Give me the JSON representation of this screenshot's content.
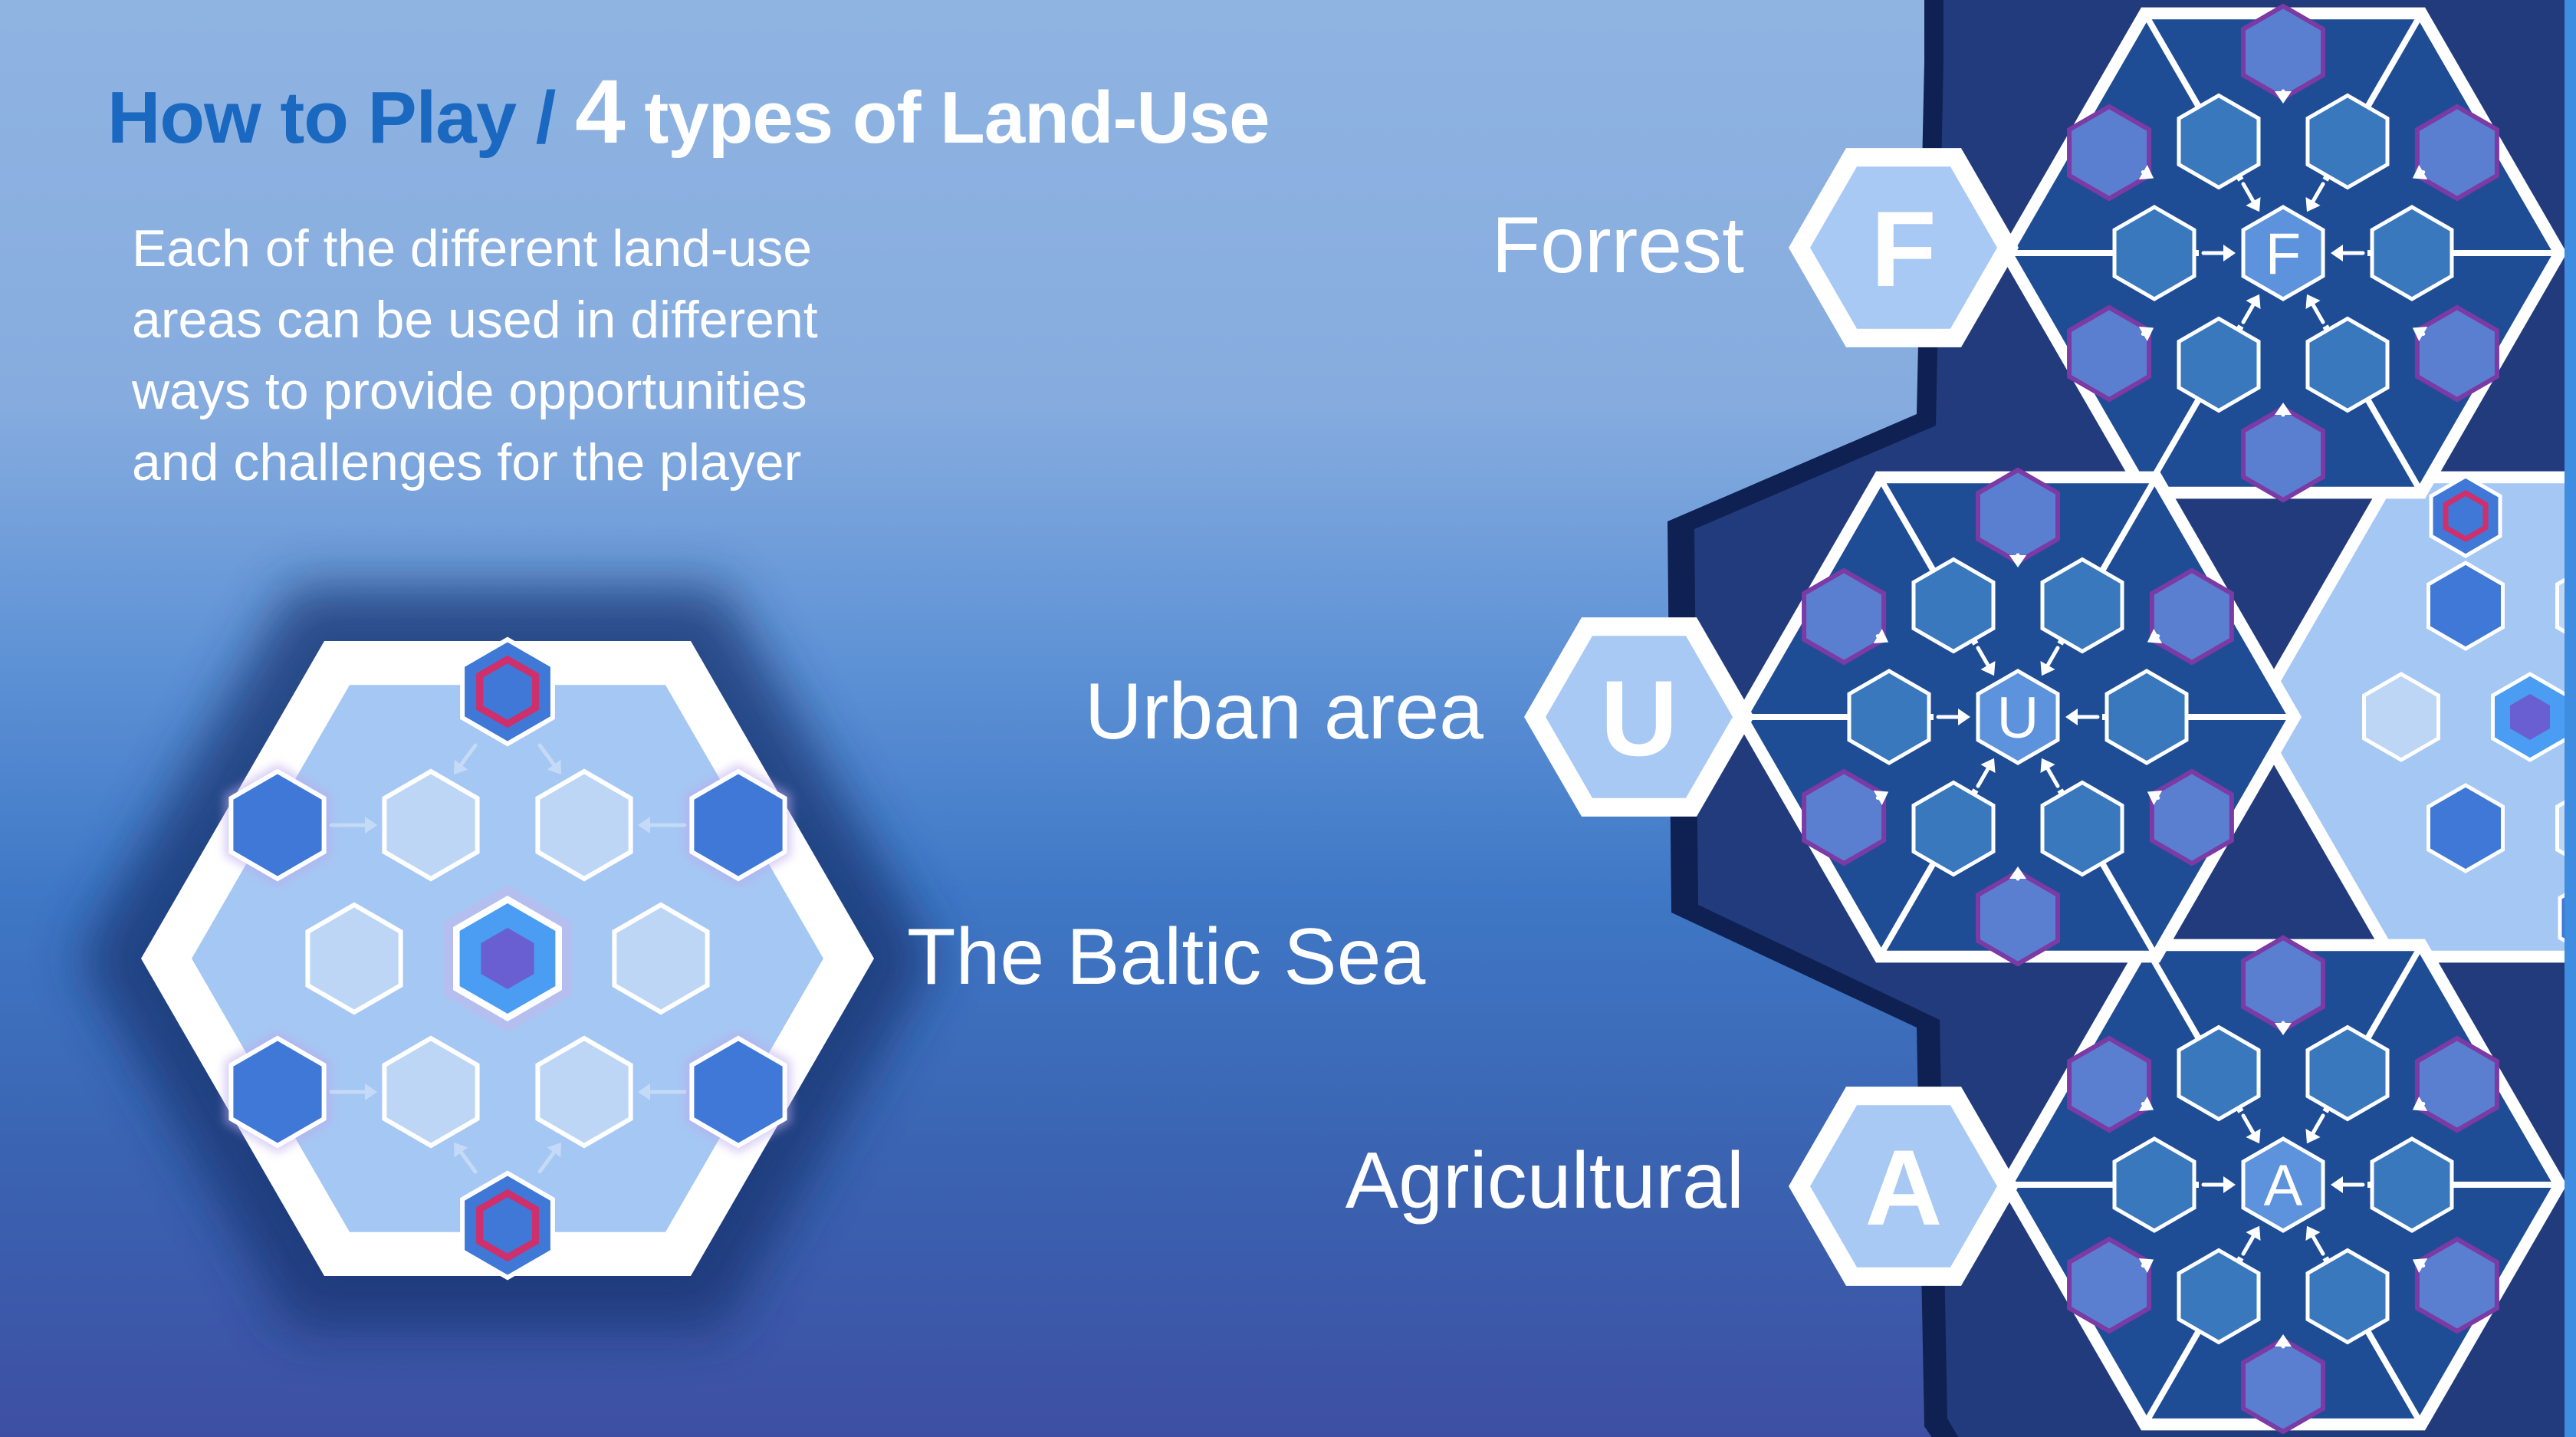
{
  "title": {
    "part_how": "How to Play",
    "part_sep": " / ",
    "part_num": "4",
    "part_rest": " types of Land-Use"
  },
  "intro": {
    "line1": "Each of the different land-use",
    "line2": "areas can be used in different",
    "line3": "ways to provide opportunities",
    "line4": "and challenges for the player"
  },
  "land_uses": {
    "forrest": {
      "label": "Forrest",
      "letter": "F"
    },
    "urban": {
      "label": "Urban area",
      "letter": "U"
    },
    "sea": {
      "label": "The Baltic Sea"
    },
    "agricultural": {
      "label": "Agricultural",
      "letter": "A"
    }
  },
  "colors": {
    "title_blue": "#1a68c0",
    "tile_dark": "#1e4d96",
    "cell_blue": "#3a78bd",
    "cell_purple_fill": "#5b7fd0",
    "cell_purple_stroke": "#7b3aa4",
    "badge_fill": "#a8c9f4",
    "sea_fill": "#a5c7f3",
    "sea_dark_cell": "#3f78d6",
    "sea_light_cell": "#bed6f6",
    "accent_pink": "#cf2f6b"
  }
}
